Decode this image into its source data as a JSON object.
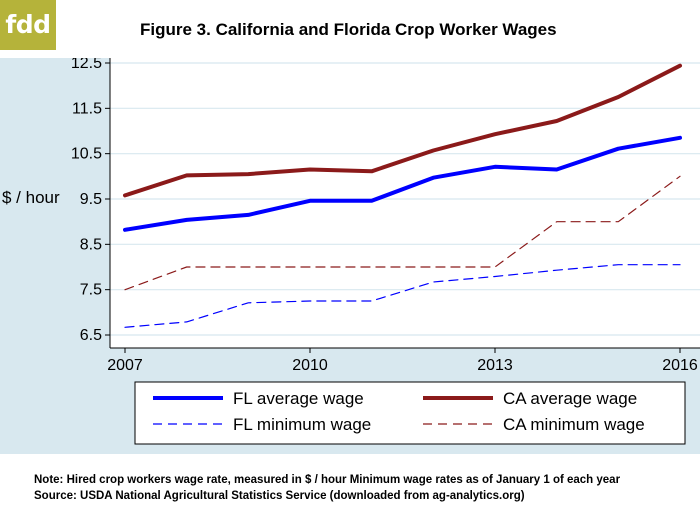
{
  "logo": {
    "text": "fdd"
  },
  "notes": {
    "line1": "Note: Hired crop workers wage rate, measured in $ / hour Minimum wage rates as of January 1 of each year",
    "line2": "Source: USDA National Agricultural Statistics Service (downloaded from ag-analytics.org)"
  },
  "colors": {
    "panel_background": "#d8e8ef",
    "logo_background": "#b5b33a",
    "fl": "#0000ff",
    "ca": "#8b1a1a"
  },
  "chart_data": {
    "type": "line",
    "title": "Figure 3. California and Florida Crop Worker Wages",
    "ylabel": "$ / hour",
    "xlabel": "",
    "x": [
      2007,
      2008,
      2009,
      2010,
      2011,
      2012,
      2013,
      2014,
      2015,
      2016
    ],
    "xticks": [
      "2007",
      "2010",
      "2013",
      "2016"
    ],
    "yticks": [
      "6.5",
      "7.5",
      "8.5",
      "9.5",
      "10.5",
      "11.5",
      "12.5"
    ],
    "ylim": [
      6.3,
      12.8
    ],
    "grid": "horizontal",
    "legend_position": "bottom",
    "series": [
      {
        "name": "FL average wage",
        "color": "#0000ff",
        "style": "solid",
        "width": 4,
        "values": [
          8.82,
          9.04,
          9.15,
          9.46,
          9.46,
          9.97,
          10.21,
          10.15,
          10.61,
          10.85
        ]
      },
      {
        "name": "CA average wage",
        "color": "#8b1a1a",
        "style": "solid",
        "width": 4,
        "values": [
          9.58,
          10.02,
          10.05,
          10.15,
          10.11,
          10.57,
          10.93,
          11.22,
          11.75,
          12.44
        ]
      },
      {
        "name": "FL minimum wage",
        "color": "#0000ff",
        "style": "dashed",
        "width": 1.2,
        "values": [
          6.67,
          6.79,
          7.21,
          7.25,
          7.25,
          7.67,
          7.79,
          7.93,
          8.05,
          8.05
        ]
      },
      {
        "name": "CA minimum wage",
        "color": "#8b1a1a",
        "style": "dashed",
        "width": 1.2,
        "values": [
          7.5,
          8.0,
          8.0,
          8.0,
          8.0,
          8.0,
          8.0,
          9.0,
          9.0,
          10.0
        ]
      }
    ]
  }
}
